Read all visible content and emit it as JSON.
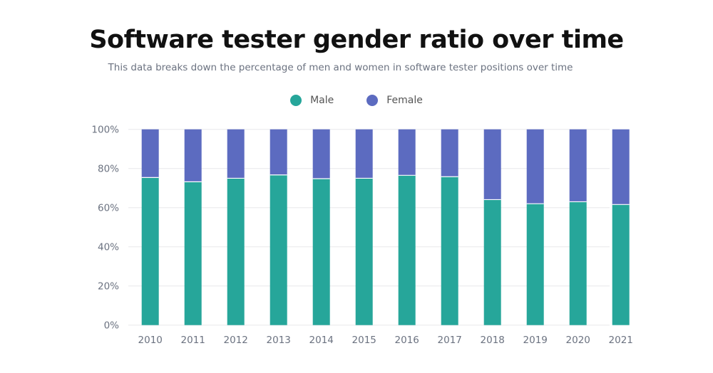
{
  "chart_data": {
    "type": "bar",
    "stacked": true,
    "title": "Software tester gender ratio over time",
    "subtitle": "This data breaks down the percentage of men and women in software tester positions over time",
    "categories": [
      "2010",
      "2011",
      "2012",
      "2013",
      "2014",
      "2015",
      "2016",
      "2017",
      "2018",
      "2019",
      "2020",
      "2021"
    ],
    "series": [
      {
        "name": "Male",
        "color": "#26a69a",
        "values": [
          75.4,
          73.2,
          75.0,
          76.7,
          74.8,
          75.0,
          76.5,
          75.8,
          64.1,
          62.0,
          63.0,
          61.6
        ]
      },
      {
        "name": "Female",
        "color": "#5c6bc0",
        "values": [
          24.6,
          26.8,
          25.0,
          23.3,
          25.2,
          25.0,
          23.5,
          24.2,
          35.9,
          38.0,
          37.0,
          38.4
        ]
      }
    ],
    "ylim": [
      0,
      100
    ],
    "yticks": [
      "0%",
      "20%",
      "40%",
      "60%",
      "80%",
      "100%"
    ],
    "grid": true,
    "legend": "top-center"
  }
}
